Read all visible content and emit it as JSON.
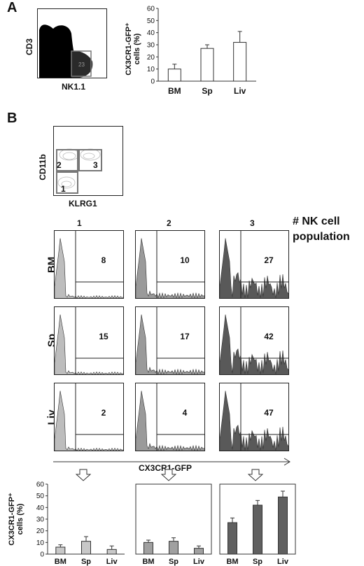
{
  "panel_a": {
    "letter": "A",
    "dotplot": {
      "y_label": "CD3",
      "x_label": "NK1.1"
    },
    "chart_data": {
      "type": "bar",
      "categories": [
        "BM",
        "Sp",
        "Liv"
      ],
      "values": [
        10,
        27,
        32
      ],
      "errors": [
        4,
        3,
        9
      ],
      "ylabel": "CX3CR1-GFP⁺ cells (%)",
      "ylim": [
        0,
        60
      ],
      "yticks": [
        0,
        10,
        20,
        30,
        40,
        50,
        60
      ],
      "bar_color": "#ffffff"
    }
  },
  "panel_b": {
    "letter": "B",
    "contour": {
      "y_label": "CD11b",
      "x_label": "KLRG1",
      "gates": [
        "2",
        "3",
        "1"
      ]
    },
    "population_header": "# NK cell population",
    "columns": [
      "1",
      "2",
      "3"
    ],
    "rows": [
      "BM",
      "Sp",
      "Liv"
    ],
    "histogram_values": [
      [
        "8",
        "10",
        "27"
      ],
      [
        "15",
        "17",
        "42"
      ],
      [
        "2",
        "4",
        "47"
      ]
    ],
    "histogram_colors": [
      "#bdbdbd",
      "#9a9a9a",
      "#595959"
    ],
    "x_axis_label": "CX3CR1-GFP",
    "chart_data": [
      {
        "type": "bar",
        "categories": [
          "BM",
          "Sp",
          "Liv"
        ],
        "values": [
          6,
          11,
          4
        ],
        "errors": [
          2,
          4,
          3
        ],
        "ylabel": "CX3CR1-GFP⁺ cells (%)",
        "ylim": [
          0,
          60
        ],
        "yticks": [
          0,
          10,
          20,
          30,
          40,
          50,
          60
        ],
        "bar_color": "#c8c8c8"
      },
      {
        "type": "bar",
        "categories": [
          "BM",
          "Sp",
          "Liv"
        ],
        "values": [
          10,
          11,
          5
        ],
        "errors": [
          2,
          3,
          2
        ],
        "ylim": [
          0,
          60
        ],
        "bar_color": "#a0a0a0"
      },
      {
        "type": "bar",
        "categories": [
          "BM",
          "Sp",
          "Liv"
        ],
        "values": [
          27,
          42,
          49
        ],
        "errors": [
          4,
          4,
          5
        ],
        "ylim": [
          0,
          60
        ],
        "bar_color": "#606060"
      }
    ]
  }
}
